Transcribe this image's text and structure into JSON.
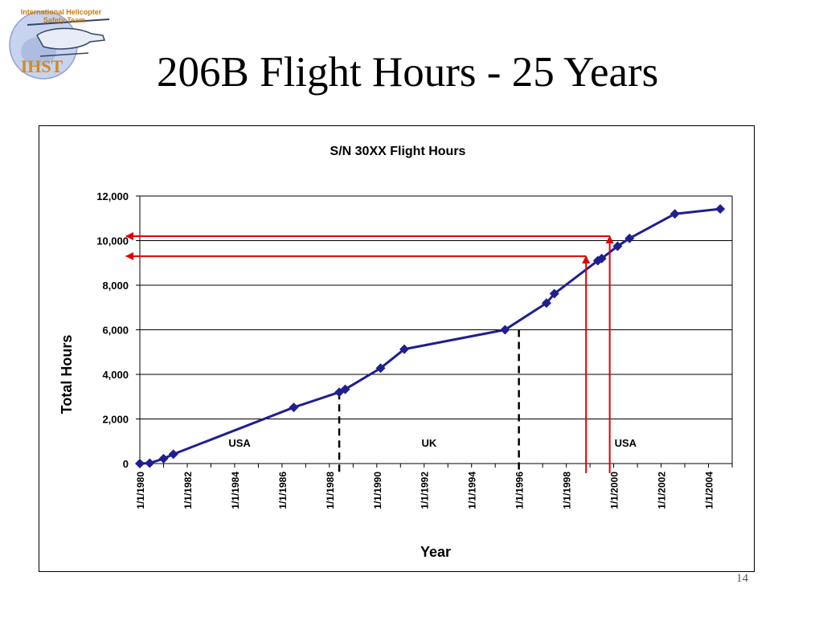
{
  "slide": {
    "title": "206B Flight Hours - 25 Years",
    "page_number": "14",
    "logo": {
      "line1": "International Helicopter",
      "line2": "Safety Team",
      "abbr": "IHST"
    }
  },
  "chart_data": {
    "type": "line",
    "title": "S/N 30XX Flight Hours",
    "xlabel": "Year",
    "ylabel": "Total Hours",
    "x_type": "date",
    "xlim": [
      "1980-01-01",
      "2005-01-01"
    ],
    "ylim": [
      0,
      12000
    ],
    "yticks": [
      0,
      2000,
      4000,
      6000,
      8000,
      10000,
      12000
    ],
    "ytick_labels": [
      "0",
      "2,000",
      "4,000",
      "6,000",
      "8,000",
      "10,000",
      "12,000"
    ],
    "xtick_labels": [
      "1/1/1980",
      "1/1/1982",
      "1/1/1984",
      "1/1/1986",
      "1/1/1988",
      "1/1/1990",
      "1/1/1992",
      "1/1/1994",
      "1/1/1996",
      "1/1/1998",
      "1/1/2000",
      "1/1/2002",
      "1/1/2004"
    ],
    "grid": "horizontal",
    "series": [
      {
        "color": "#1f1f8f",
        "marker": "diamond",
        "points": [
          [
            "1980-01-01",
            0
          ],
          [
            "1980-06-01",
            20
          ],
          [
            "1981-01-01",
            220
          ],
          [
            "1981-06-01",
            420
          ],
          [
            "1986-07-01",
            2520
          ],
          [
            "1988-06-01",
            3200
          ],
          [
            "1988-09-01",
            3330
          ],
          [
            "1990-03-01",
            4280
          ],
          [
            "1991-03-01",
            5130
          ],
          [
            "1995-06-01",
            6000
          ],
          [
            "1997-03-01",
            7200
          ],
          [
            "1997-07-01",
            7620
          ],
          [
            "1999-05-01",
            9100
          ],
          [
            "1999-07-01",
            9200
          ],
          [
            "2000-03-01",
            9750
          ],
          [
            "2000-09-01",
            10100
          ],
          [
            "2002-08-01",
            11200
          ],
          [
            "2004-07-01",
            11420
          ]
        ]
      }
    ],
    "periods": [
      {
        "label": "USA",
        "from": "1980-01-01",
        "to": "1988-06-01"
      },
      {
        "label": "UK",
        "from": "1988-06-01",
        "to": "1996-01-01"
      },
      {
        "label": "USA",
        "from": "1996-01-01",
        "to": "2005-01-01"
      }
    ],
    "dashed_dividers": [
      {
        "date": "1988-06-01",
        "from": 3200
      },
      {
        "date": "1996-01-01",
        "from": 6000
      }
    ],
    "red_arrows": [
      {
        "date": "1998-11-01",
        "hours": 9300
      },
      {
        "date": "1999-11-01",
        "hours": 10200
      }
    ],
    "colors": {
      "line": "#1f1f8f",
      "arrows": "#e00000",
      "grid": "#000000"
    }
  }
}
